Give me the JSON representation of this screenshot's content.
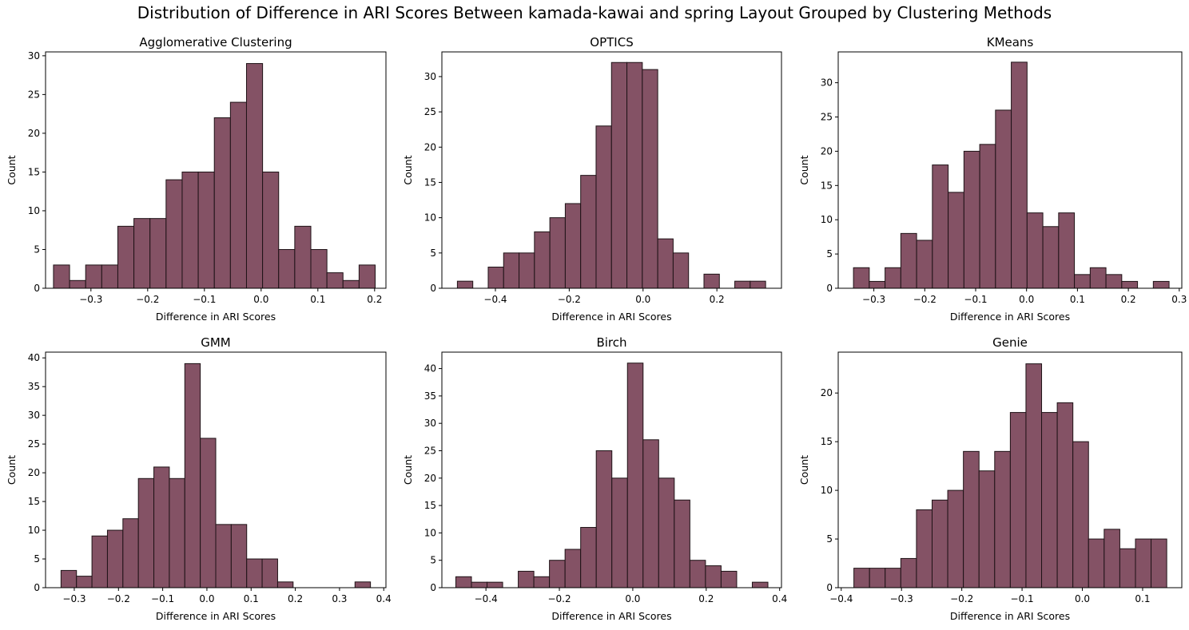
{
  "title": "Distribution of Difference in ARI Scores Between kamada-kawai and spring Layout Grouped by  Clustering Methods",
  "colors": {
    "bar_fill": "#845265",
    "bar_edge": "#1e1216",
    "axis": "#000000"
  },
  "chart_data": [
    {
      "type": "bar",
      "subtitle": "Agglomerative Clustering",
      "xlabel": "Difference in ARI Scores",
      "ylabel": "Count",
      "xlim": [
        -0.38,
        0.22
      ],
      "ylim": [
        0,
        30.5
      ],
      "xticks": [
        -0.3,
        -0.2,
        -0.1,
        0.0,
        0.1,
        0.2
      ],
      "xtick_labels": [
        "−0.3",
        "−0.2",
        "−0.1",
        "0.0",
        "0.1",
        "0.2"
      ],
      "yticks": [
        0,
        5,
        10,
        15,
        20,
        25,
        30
      ],
      "bin_start": -0.366,
      "bin_width": 0.02835,
      "counts": [
        3,
        1,
        3,
        3,
        8,
        9,
        9,
        14,
        15,
        15,
        22,
        24,
        29,
        15,
        5,
        8,
        5,
        2,
        1,
        3
      ]
    },
    {
      "type": "bar",
      "subtitle": "OPTICS",
      "xlabel": "Difference in ARI Scores",
      "ylabel": "Count",
      "xlim": [
        -0.545,
        0.375
      ],
      "ylim": [
        0,
        33.5
      ],
      "xticks": [
        -0.4,
        -0.2,
        0.0,
        0.2
      ],
      "xtick_labels": [
        "−0.4",
        "−0.2",
        "0.0",
        "0.2"
      ],
      "yticks": [
        0,
        5,
        10,
        15,
        20,
        25,
        30
      ],
      "bin_start": -0.503,
      "bin_width": 0.04175,
      "counts": [
        1,
        0,
        3,
        5,
        5,
        8,
        10,
        12,
        16,
        23,
        32,
        32,
        31,
        7,
        5,
        0,
        2,
        0,
        1,
        1
      ]
    },
    {
      "type": "bar",
      "subtitle": "KMeans",
      "xlabel": "Difference in ARI Scores",
      "ylabel": "Count",
      "xlim": [
        -0.37,
        0.305
      ],
      "ylim": [
        0,
        34.5
      ],
      "xticks": [
        -0.3,
        -0.2,
        -0.1,
        0.0,
        0.1,
        0.2,
        0.3
      ],
      "xtick_labels": [
        "−0.3",
        "−0.2",
        "−0.1",
        "0.0",
        "0.1",
        "0.2",
        "0.3"
      ],
      "yticks": [
        0,
        5,
        10,
        15,
        20,
        25,
        30
      ],
      "bin_start": -0.34,
      "bin_width": 0.031,
      "counts": [
        3,
        1,
        3,
        8,
        7,
        18,
        14,
        20,
        21,
        26,
        33,
        11,
        9,
        11,
        2,
        3,
        2,
        1,
        0,
        1
      ]
    },
    {
      "type": "bar",
      "subtitle": "GMM",
      "xlabel": "Difference in ARI Scores",
      "ylabel": "Count",
      "xlim": [
        -0.365,
        0.405
      ],
      "ylim": [
        0,
        41
      ],
      "xticks": [
        -0.3,
        -0.2,
        -0.1,
        0.0,
        0.1,
        0.2,
        0.3,
        0.4
      ],
      "xtick_labels": [
        "−0.3",
        "−0.2",
        "−0.1",
        "0.0",
        "0.1",
        "0.2",
        "0.3",
        "0.4"
      ],
      "yticks": [
        0,
        5,
        10,
        15,
        20,
        25,
        30,
        35,
        40
      ],
      "bin_start": -0.33,
      "bin_width": 0.035,
      "counts": [
        3,
        2,
        9,
        10,
        12,
        19,
        21,
        19,
        39,
        26,
        11,
        11,
        5,
        5,
        1,
        0,
        0,
        0,
        0,
        1
      ]
    },
    {
      "type": "bar",
      "subtitle": "Birch",
      "xlabel": "Difference in ARI Scores",
      "ylabel": "Count",
      "xlim": [
        -0.52,
        0.405
      ],
      "ylim": [
        0,
        43
      ],
      "xticks": [
        -0.4,
        -0.2,
        0.0,
        0.2,
        0.4
      ],
      "xtick_labels": [
        "−0.4",
        "−0.2",
        "0.0",
        "0.2",
        "0.4"
      ],
      "yticks": [
        0,
        5,
        10,
        15,
        20,
        25,
        30,
        35,
        40
      ],
      "bin_start": -0.482,
      "bin_width": 0.0425,
      "counts": [
        2,
        1,
        1,
        0,
        3,
        2,
        5,
        7,
        11,
        25,
        20,
        41,
        27,
        20,
        16,
        5,
        4,
        3,
        0,
        1
      ]
    },
    {
      "type": "bar",
      "subtitle": "Genie",
      "xlabel": "Difference in ARI Scores",
      "ylabel": "Count",
      "xlim": [
        -0.405,
        0.165
      ],
      "ylim": [
        0,
        24.2
      ],
      "xticks": [
        -0.4,
        -0.3,
        -0.2,
        -0.1,
        0.0,
        0.1
      ],
      "xtick_labels": [
        "−0.4",
        "−0.3",
        "−0.2",
        "−0.1",
        "0.0",
        "0.1"
      ],
      "yticks": [
        0,
        5,
        10,
        15,
        20
      ],
      "bin_start": -0.379,
      "bin_width": 0.02595,
      "counts": [
        2,
        2,
        2,
        3,
        8,
        9,
        10,
        14,
        12,
        14,
        18,
        23,
        18,
        19,
        15,
        5,
        6,
        4,
        5,
        5
      ]
    }
  ]
}
